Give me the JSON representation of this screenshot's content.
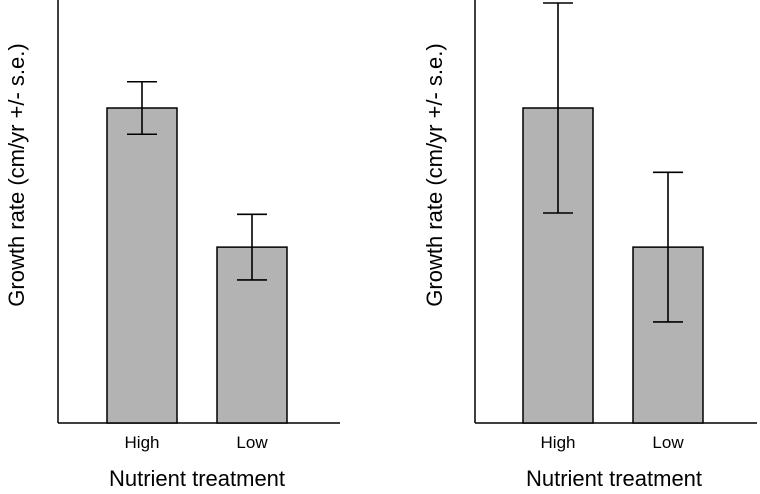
{
  "chart_data": [
    {
      "type": "bar",
      "categories": [
        "High",
        "Low"
      ],
      "values": [
        12.0,
        6.7
      ],
      "errors": [
        1.0,
        1.25
      ],
      "xlabel": "Nutrient treatment",
      "ylabel": "Growth rate (cm/yr +/- s.e.)",
      "ylim": [
        0,
        16
      ],
      "bar_color": "#b3b3b3"
    },
    {
      "type": "bar",
      "categories": [
        "High",
        "Low"
      ],
      "values": [
        12.0,
        6.7
      ],
      "errors": [
        4.0,
        2.85
      ],
      "xlabel": "Nutrient treatment",
      "ylabel": "Growth rate (cm/yr +/- s.e.)",
      "ylim": [
        0,
        16
      ],
      "bar_color": "#b3b3b3"
    }
  ]
}
